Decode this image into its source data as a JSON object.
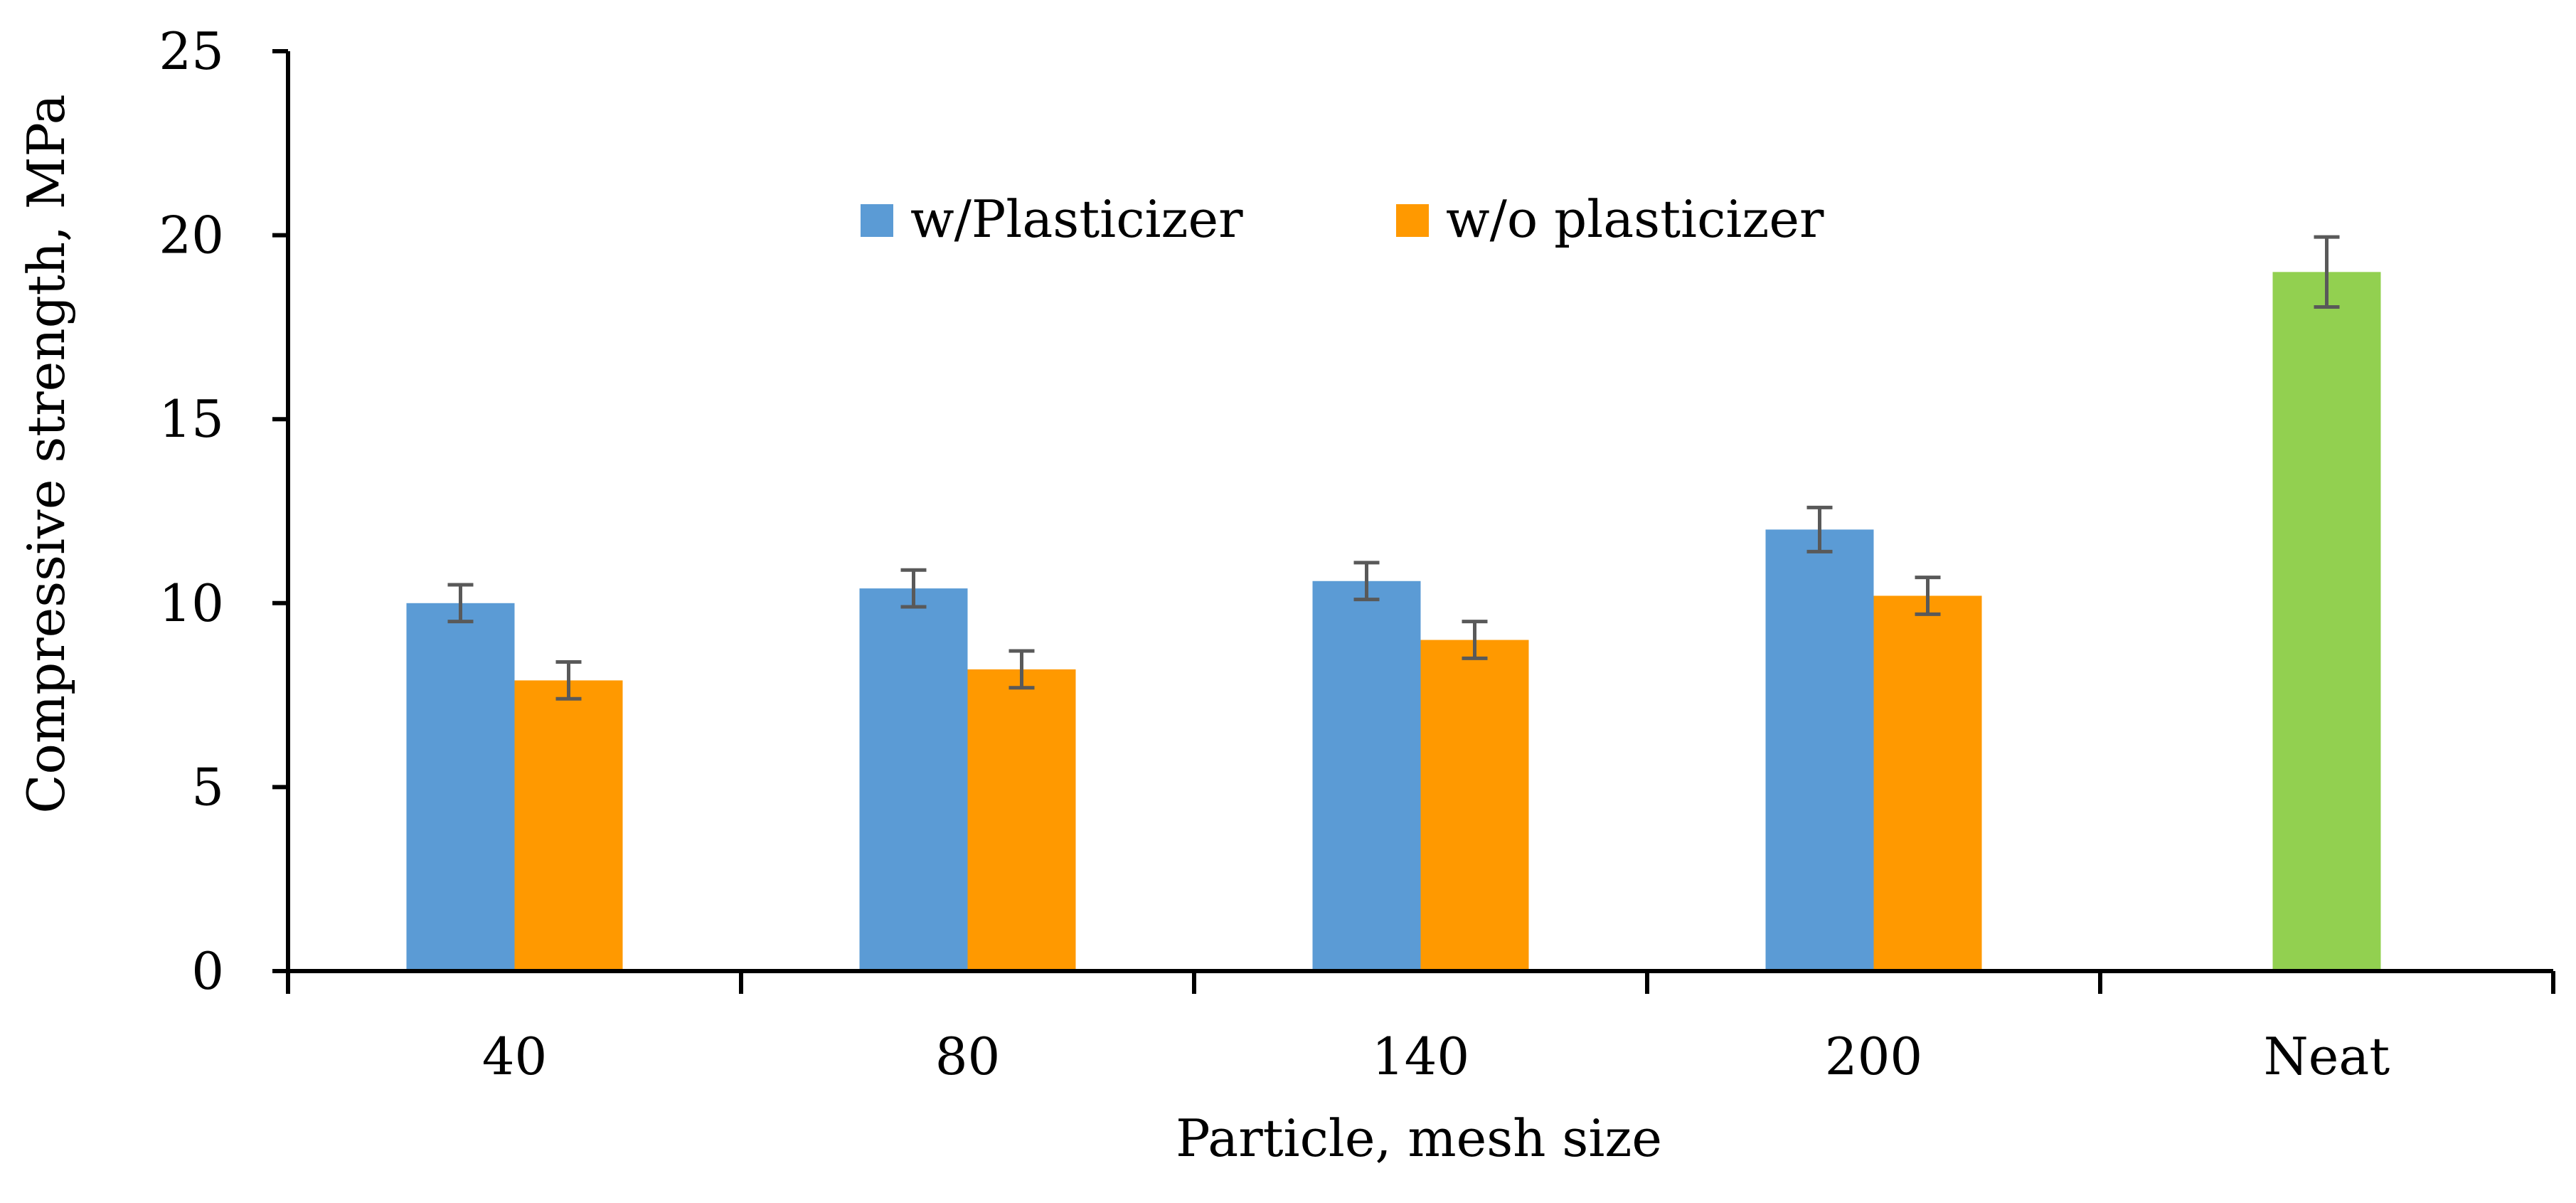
{
  "chart_data": {
    "type": "bar",
    "title": "",
    "xlabel": "Particle, mesh size",
    "ylabel": "Compressive strength, MPa",
    "ylim": [
      0,
      25
    ],
    "yticks": [
      0,
      5,
      10,
      15,
      20,
      25
    ],
    "grid": false,
    "legend_position": "top-center",
    "categories": [
      "40",
      "80",
      "140",
      "200",
      "Neat"
    ],
    "series": [
      {
        "name": "w/Plasticizer",
        "color": "#5B9BD5",
        "values": [
          10.0,
          10.4,
          10.6,
          12.0,
          null
        ],
        "errors": [
          0.5,
          0.5,
          0.5,
          0.6,
          null
        ]
      },
      {
        "name": "w/o plasticizer",
        "color": "#FF9900",
        "values": [
          7.9,
          8.2,
          9.0,
          10.2,
          null
        ],
        "errors": [
          0.5,
          0.5,
          0.5,
          0.5,
          null
        ]
      },
      {
        "name": "Neat",
        "color": "#92D050",
        "values": [
          null,
          null,
          null,
          null,
          19.0
        ],
        "errors": [
          null,
          null,
          null,
          null,
          0.95
        ],
        "in_legend": false
      }
    ]
  }
}
